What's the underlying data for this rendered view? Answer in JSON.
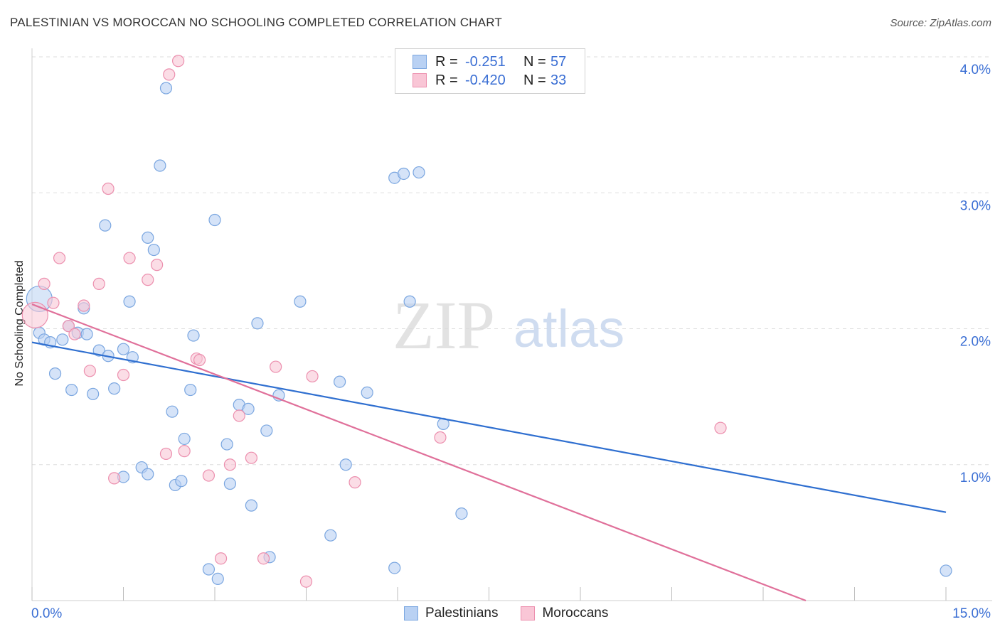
{
  "header": {
    "title": "PALESTINIAN VS MOROCCAN NO SCHOOLING COMPLETED CORRELATION CHART",
    "source": "Source: ZipAtlas.com"
  },
  "watermark": {
    "zip": "ZIP",
    "atlas": "atlas"
  },
  "colors": {
    "blue_fill": "#b9d1f3",
    "blue_stroke": "#7aa6e0",
    "blue_line": "#2f6fd0",
    "pink_fill": "#f9c6d6",
    "pink_stroke": "#ec8fae",
    "pink_line": "#e0709a",
    "value_text": "#3b6fd4"
  },
  "legend": {
    "rows": [
      {
        "r_label": "R =",
        "r_value": "-0.251",
        "n_label": "N =",
        "n_value": "57"
      },
      {
        "r_label": "R =",
        "r_value": "-0.420",
        "n_label": "N =",
        "n_value": "33"
      }
    ]
  },
  "bottom_legend": {
    "items": [
      "Palestinians",
      "Moroccans"
    ]
  },
  "chart_data": {
    "type": "scatter",
    "title": "PALESTINIAN VS MOROCCAN NO SCHOOLING COMPLETED CORRELATION CHART",
    "xlabel": "",
    "ylabel": "No Schooling Completed",
    "xlim": [
      0,
      15
    ],
    "ylim": [
      0,
      4.0
    ],
    "x_tick_labels": [
      "0.0%",
      "15.0%"
    ],
    "y_ticks": [
      1.0,
      2.0,
      3.0,
      4.0
    ],
    "y_tick_labels": [
      "1.0%",
      "2.0%",
      "3.0%",
      "4.0%"
    ],
    "grid": true,
    "series": [
      {
        "name": "Palestinians",
        "trend": {
          "x": [
            0.0,
            15.0
          ],
          "y": [
            1.9,
            0.65
          ]
        },
        "points": [
          {
            "x": 0.12,
            "y": 2.22
          },
          {
            "x": 0.12,
            "y": 1.97
          },
          {
            "x": 0.2,
            "y": 1.92
          },
          {
            "x": 0.3,
            "y": 1.9
          },
          {
            "x": 0.5,
            "y": 1.92
          },
          {
            "x": 0.38,
            "y": 1.67
          },
          {
            "x": 0.6,
            "y": 2.02
          },
          {
            "x": 0.65,
            "y": 1.55
          },
          {
            "x": 0.75,
            "y": 1.97
          },
          {
            "x": 0.85,
            "y": 2.15
          },
          {
            "x": 0.9,
            "y": 1.96
          },
          {
            "x": 1.0,
            "y": 1.52
          },
          {
            "x": 1.1,
            "y": 1.84
          },
          {
            "x": 1.2,
            "y": 2.76
          },
          {
            "x": 1.25,
            "y": 1.8
          },
          {
            "x": 1.35,
            "y": 1.56
          },
          {
            "x": 1.5,
            "y": 1.85
          },
          {
            "x": 1.6,
            "y": 2.2
          },
          {
            "x": 1.65,
            "y": 1.79
          },
          {
            "x": 1.5,
            "y": 0.91
          },
          {
            "x": 1.8,
            "y": 0.98
          },
          {
            "x": 1.9,
            "y": 0.93
          },
          {
            "x": 1.9,
            "y": 2.67
          },
          {
            "x": 2.0,
            "y": 2.58
          },
          {
            "x": 2.1,
            "y": 3.2
          },
          {
            "x": 2.2,
            "y": 3.77
          },
          {
            "x": 2.3,
            "y": 1.39
          },
          {
            "x": 2.35,
            "y": 0.85
          },
          {
            "x": 2.45,
            "y": 0.88
          },
          {
            "x": 2.5,
            "y": 1.19
          },
          {
            "x": 2.6,
            "y": 1.55
          },
          {
            "x": 2.65,
            "y": 1.95
          },
          {
            "x": 2.9,
            "y": 0.23
          },
          {
            "x": 3.0,
            "y": 2.8
          },
          {
            "x": 3.05,
            "y": 0.16
          },
          {
            "x": 3.2,
            "y": 1.15
          },
          {
            "x": 3.25,
            "y": 0.86
          },
          {
            "x": 3.4,
            "y": 1.44
          },
          {
            "x": 3.55,
            "y": 1.41
          },
          {
            "x": 3.6,
            "y": 0.7
          },
          {
            "x": 3.7,
            "y": 2.04
          },
          {
            "x": 3.85,
            "y": 1.25
          },
          {
            "x": 3.9,
            "y": 0.32
          },
          {
            "x": 4.05,
            "y": 1.51
          },
          {
            "x": 4.4,
            "y": 2.2
          },
          {
            "x": 4.9,
            "y": 0.48
          },
          {
            "x": 5.05,
            "y": 1.61
          },
          {
            "x": 5.15,
            "y": 1.0
          },
          {
            "x": 5.5,
            "y": 1.53
          },
          {
            "x": 5.95,
            "y": 0.24
          },
          {
            "x": 5.95,
            "y": 3.11
          },
          {
            "x": 6.1,
            "y": 3.14
          },
          {
            "x": 6.2,
            "y": 2.2
          },
          {
            "x": 6.35,
            "y": 3.15
          },
          {
            "x": 6.75,
            "y": 1.3
          },
          {
            "x": 7.05,
            "y": 0.64
          },
          {
            "x": 15.0,
            "y": 0.22
          }
        ]
      },
      {
        "name": "Moroccans",
        "trend": {
          "x": [
            0.0,
            12.7
          ],
          "y": [
            2.18,
            0.0
          ]
        },
        "points": [
          {
            "x": 0.05,
            "y": 2.1
          },
          {
            "x": 0.2,
            "y": 2.33
          },
          {
            "x": 0.35,
            "y": 2.19
          },
          {
            "x": 0.45,
            "y": 2.52
          },
          {
            "x": 0.6,
            "y": 2.02
          },
          {
            "x": 0.7,
            "y": 1.96
          },
          {
            "x": 0.85,
            "y": 2.17
          },
          {
            "x": 0.95,
            "y": 1.69
          },
          {
            "x": 1.1,
            "y": 2.33
          },
          {
            "x": 1.25,
            "y": 3.03
          },
          {
            "x": 1.35,
            "y": 0.9
          },
          {
            "x": 1.5,
            "y": 1.66
          },
          {
            "x": 1.6,
            "y": 2.52
          },
          {
            "x": 1.9,
            "y": 2.36
          },
          {
            "x": 2.05,
            "y": 2.47
          },
          {
            "x": 2.2,
            "y": 1.08
          },
          {
            "x": 2.25,
            "y": 3.87
          },
          {
            "x": 2.4,
            "y": 3.97
          },
          {
            "x": 2.5,
            "y": 1.1
          },
          {
            "x": 2.7,
            "y": 1.78
          },
          {
            "x": 2.75,
            "y": 1.77
          },
          {
            "x": 2.9,
            "y": 0.92
          },
          {
            "x": 3.1,
            "y": 0.31
          },
          {
            "x": 3.25,
            "y": 1.0
          },
          {
            "x": 3.4,
            "y": 1.36
          },
          {
            "x": 3.6,
            "y": 1.05
          },
          {
            "x": 3.8,
            "y": 0.31
          },
          {
            "x": 4.0,
            "y": 1.72
          },
          {
            "x": 4.5,
            "y": 0.14
          },
          {
            "x": 4.6,
            "y": 1.65
          },
          {
            "x": 5.3,
            "y": 0.87
          },
          {
            "x": 6.7,
            "y": 1.2
          },
          {
            "x": 11.3,
            "y": 1.27
          }
        ]
      }
    ]
  }
}
